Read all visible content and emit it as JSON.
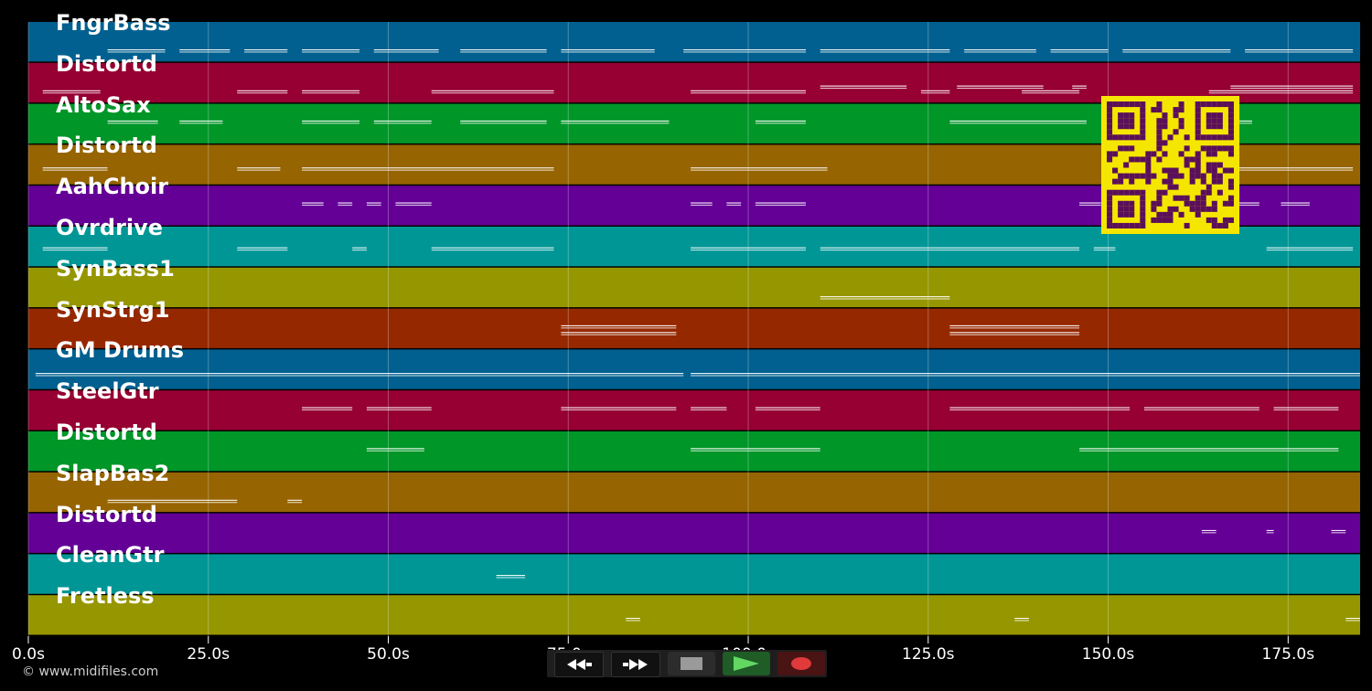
{
  "tracks": [
    {
      "name": "FngrBass",
      "color": "#01608f",
      "lanes": [
        {
          "y": 0.72,
          "segs": [
            [
              11,
              19
            ],
            [
              21,
              28
            ],
            [
              30,
              36
            ],
            [
              38,
              46
            ],
            [
              48,
              57
            ],
            [
              60,
              72
            ],
            [
              74,
              87
            ],
            [
              91,
              108
            ],
            [
              110,
              128
            ],
            [
              130,
              140
            ],
            [
              142,
              150
            ],
            [
              152,
              167
            ],
            [
              169,
              184
            ]
          ]
        }
      ]
    },
    {
      "name": "Distortd",
      "color": "#960032",
      "lanes": [
        {
          "y": 0.72,
          "segs": [
            [
              2,
              10
            ],
            [
              29,
              36
            ],
            [
              38,
              46
            ],
            [
              56,
              73
            ],
            [
              92,
              108
            ],
            [
              124,
              128
            ],
            [
              138,
              146
            ],
            [
              164,
              184
            ]
          ]
        },
        {
          "y": 0.6,
          "segs": [
            [
              110,
              122
            ],
            [
              129,
              141
            ],
            [
              145,
              147
            ],
            [
              167,
              184
            ]
          ]
        }
      ]
    },
    {
      "name": "AltoSax",
      "color": "#009628",
      "lanes": [
        {
          "y": 0.45,
          "segs": [
            [
              11,
              18
            ],
            [
              21,
              27
            ],
            [
              38,
              46
            ],
            [
              48,
              56
            ],
            [
              60,
              72
            ],
            [
              74,
              89
            ],
            [
              101,
              108
            ],
            [
              128,
              147
            ],
            [
              151,
              156
            ],
            [
              160,
              170
            ]
          ]
        }
      ]
    },
    {
      "name": "Distortd",
      "color": "#966400",
      "lanes": [
        {
          "y": 0.6,
          "segs": [
            [
              2,
              11
            ],
            [
              29,
              35
            ],
            [
              38,
              73
            ],
            [
              92,
              111
            ],
            [
              164,
              184
            ]
          ]
        }
      ]
    },
    {
      "name": "AahChoir",
      "color": "#640096",
      "lanes": [
        {
          "y": 0.45,
          "segs": [
            [
              38,
              41
            ],
            [
              43,
              45
            ],
            [
              47,
              49
            ],
            [
              51,
              56
            ],
            [
              92,
              95
            ],
            [
              97,
              99
            ],
            [
              101,
              108
            ],
            [
              146,
              149
            ],
            [
              157,
              171
            ],
            [
              174,
              178
            ]
          ]
        }
      ]
    },
    {
      "name": "Ovrdrive",
      "color": "#009696",
      "lanes": [
        {
          "y": 0.55,
          "segs": [
            [
              2,
              11
            ],
            [
              29,
              36
            ],
            [
              45,
              47
            ],
            [
              56,
              73
            ],
            [
              92,
              108
            ],
            [
              110,
              146
            ],
            [
              148,
              151
            ],
            [
              172,
              184
            ]
          ]
        }
      ]
    },
    {
      "name": "SynBass1",
      "color": "#969600",
      "lanes": [
        {
          "y": 0.75,
          "segs": [
            [
              110,
              128
            ]
          ]
        }
      ]
    },
    {
      "name": "SynStrg1",
      "color": "#962800",
      "lanes": [
        {
          "y": 0.45,
          "segs": [
            [
              74,
              90
            ],
            [
              128,
              146
            ]
          ]
        },
        {
          "y": 0.62,
          "segs": [
            [
              74,
              90
            ],
            [
              128,
              146
            ]
          ]
        }
      ]
    },
    {
      "name": "GM Drums",
      "color": "#01608f",
      "lanes": [
        {
          "y": 0.62,
          "segs": [
            [
              1,
              91
            ],
            [
              92,
              185
            ]
          ]
        }
      ]
    },
    {
      "name": "SteelGtr",
      "color": "#960032",
      "lanes": [
        {
          "y": 0.45,
          "segs": [
            [
              38,
              45
            ],
            [
              47,
              56
            ],
            [
              74,
              90
            ],
            [
              92,
              97
            ],
            [
              101,
              110
            ],
            [
              128,
              146
            ],
            [
              146,
              153
            ],
            [
              155,
              171
            ],
            [
              173,
              182
            ]
          ]
        }
      ]
    },
    {
      "name": "Distortd",
      "color": "#009628",
      "lanes": [
        {
          "y": 0.45,
          "segs": [
            [
              47,
              55
            ],
            [
              92,
              110
            ],
            [
              146,
              182
            ]
          ]
        }
      ]
    },
    {
      "name": "SlapBas2",
      "color": "#966400",
      "lanes": [
        {
          "y": 0.72,
          "segs": [
            [
              11,
              29
            ],
            [
              36,
              38
            ]
          ]
        }
      ]
    },
    {
      "name": "Distortd",
      "color": "#640096",
      "lanes": [
        {
          "y": 0.45,
          "segs": [
            [
              163,
              165
            ],
            [
              172,
              173
            ],
            [
              181,
              183
            ]
          ]
        }
      ]
    },
    {
      "name": "CleanGtr",
      "color": "#009696",
      "lanes": [
        {
          "y": 0.55,
          "segs": [
            [
              65,
              69
            ]
          ]
        }
      ]
    },
    {
      "name": "Fretless",
      "color": "#969600",
      "lanes": [
        {
          "y": 0.6,
          "segs": [
            [
              83,
              85
            ],
            [
              137,
              139
            ],
            [
              183,
              185
            ]
          ]
        }
      ]
    }
  ],
  "time_axis": {
    "max_seconds": 185,
    "ticks": [
      {
        "t": 0,
        "label": "0.0s"
      },
      {
        "t": 25,
        "label": "25.0s"
      },
      {
        "t": 50,
        "label": "50.0s"
      },
      {
        "t": 75,
        "label": "75.0s"
      },
      {
        "t": 100,
        "label": "100.0s"
      },
      {
        "t": 125,
        "label": "125.0s"
      },
      {
        "t": 150,
        "label": "150.0s"
      },
      {
        "t": 175,
        "label": "175.0s"
      }
    ]
  },
  "copyright": "© www.midifiles.com",
  "transport": {
    "icons": [
      "rewind-icon",
      "fast-forward-icon",
      "stop-icon",
      "play-icon",
      "record-icon"
    ]
  },
  "qr_colors": {
    "fg": "#5a0f5a",
    "bg": "#f5e600"
  },
  "note_color": "#ffffff"
}
